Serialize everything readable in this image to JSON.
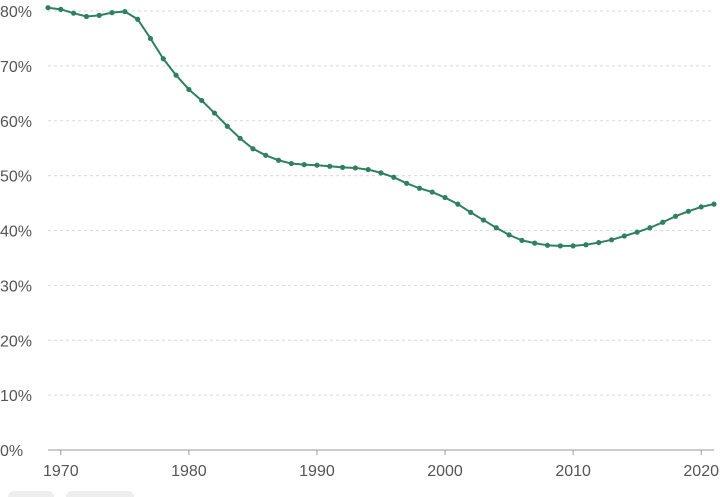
{
  "chart_data": {
    "type": "line",
    "title": "",
    "xlabel": "",
    "ylabel": "",
    "xlim": [
      1969,
      2021
    ],
    "ylim": [
      0,
      80
    ],
    "y_ticks": [
      0,
      10,
      20,
      30,
      40,
      50,
      60,
      70,
      80
    ],
    "y_tick_labels": [
      "0%",
      "10%",
      "20%",
      "30%",
      "40%",
      "50%",
      "60%",
      "70%",
      "80%"
    ],
    "x_ticks": [
      1970,
      1980,
      1990,
      2000,
      2010,
      2020
    ],
    "x_tick_labels": [
      "1970",
      "1980",
      "1990",
      "2000",
      "2010",
      "2020"
    ],
    "grid": true,
    "legend": "none",
    "color": "#2e8060",
    "series": [
      {
        "x": [
          1969,
          1970,
          1971,
          1972,
          1973,
          1974,
          1975,
          1976,
          1977,
          1978,
          1979,
          1980,
          1981,
          1982,
          1983,
          1984,
          1985,
          1986,
          1987,
          1988,
          1989,
          1990,
          1991,
          1992,
          1993,
          1994,
          1995,
          1996,
          1997,
          1998,
          1999,
          2000,
          2001,
          2002,
          2003,
          2004,
          2005,
          2006,
          2007,
          2008,
          2009,
          2010,
          2011,
          2012,
          2013,
          2014,
          2015,
          2016,
          2017,
          2018,
          2019,
          2020,
          2021
        ],
        "values": [
          80.6,
          80.3,
          79.6,
          79.0,
          79.2,
          79.7,
          79.9,
          78.5,
          75.0,
          71.3,
          68.3,
          65.7,
          63.7,
          61.4,
          59.0,
          56.8,
          54.9,
          53.7,
          52.8,
          52.2,
          52.0,
          51.9,
          51.7,
          51.5,
          51.4,
          51.1,
          50.5,
          49.7,
          48.6,
          47.7,
          47.0,
          46.0,
          44.8,
          43.3,
          41.9,
          40.5,
          39.2,
          38.2,
          37.7,
          37.3,
          37.2,
          37.2,
          37.4,
          37.8,
          38.3,
          39.0,
          39.7,
          40.5,
          41.5,
          42.6,
          43.5,
          44.3,
          44.8
        ]
      }
    ]
  }
}
